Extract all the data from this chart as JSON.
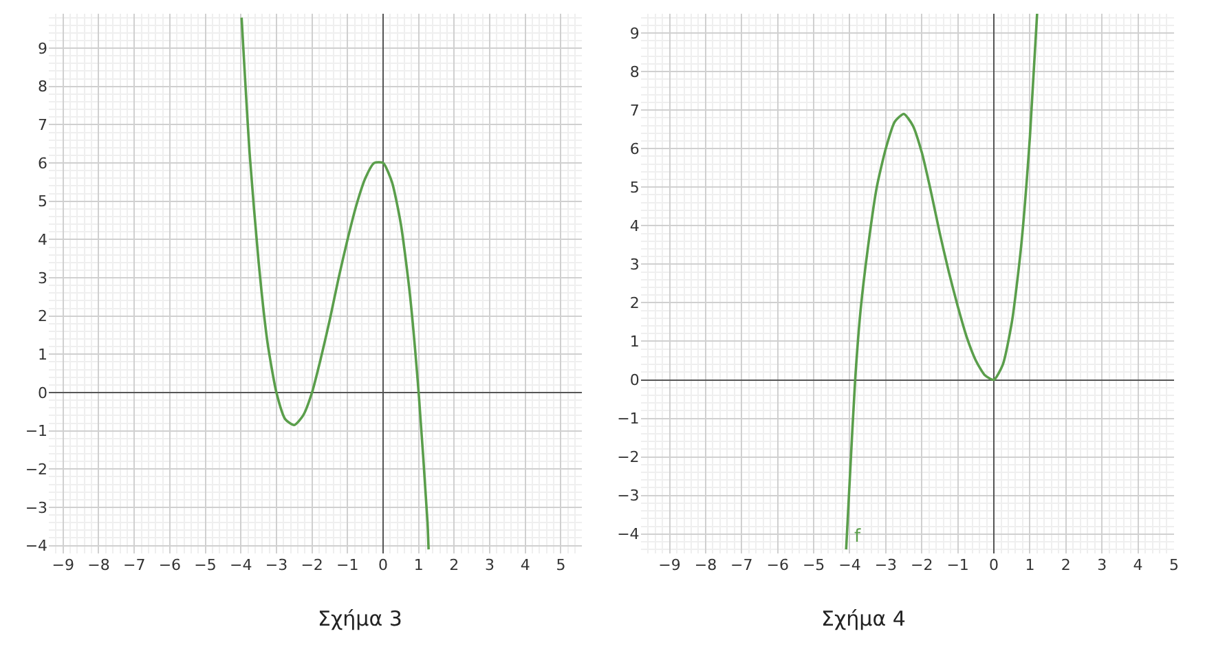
{
  "chart_data": [
    {
      "type": "line",
      "x": [
        -3.98,
        -3.75,
        -3.5,
        -3.25,
        -3,
        -2.75,
        -2.5,
        -2.25,
        -2,
        -1.75,
        -1.5,
        -1.25,
        -1,
        -0.75,
        -0.5,
        -0.25,
        0,
        0.25,
        0.5,
        0.75,
        1,
        1.25,
        1.28
      ],
      "series": [
        {
          "color": "#5a9e4b",
          "values": [
            9.8,
            6.2,
            3.4,
            1.3,
            0,
            -0.7,
            -0.85,
            -0.6,
            0,
            0.9,
            1.9,
            3,
            4,
            4.9,
            5.6,
            6,
            6,
            5.5,
            4.4,
            2.6,
            0,
            -3.4,
            -4.1
          ]
        }
      ],
      "xlim": [
        -9.4,
        5.6
      ],
      "ylim": [
        -4.2,
        9.9
      ],
      "xticks": [
        -9,
        -8,
        -7,
        -6,
        -5,
        -4,
        -3,
        -2,
        -1,
        0,
        1,
        2,
        3,
        4,
        5
      ],
      "yticks": [
        -4,
        -3,
        -2,
        -1,
        0,
        1,
        2,
        3,
        4,
        5,
        6,
        7,
        8,
        9
      ],
      "grid": true,
      "marker": "none",
      "line_style": "solid",
      "annotations": [
        "Σχήμα 3"
      ]
    },
    {
      "type": "line",
      "x": [
        -4.1,
        -4,
        -3.85,
        -3.7,
        -3.5,
        -3.25,
        -3,
        -2.75,
        -2.5,
        -2.25,
        -2,
        -1.75,
        -1.5,
        -1.25,
        -1,
        -0.75,
        -0.5,
        -0.25,
        0,
        0.25,
        0.5,
        0.75,
        1,
        1.2
      ],
      "series": [
        {
          "name": "f",
          "color": "#5a9e4b",
          "values": [
            -4.4,
            -2.6,
            0,
            1.8,
            3.4,
            5,
            6,
            6.7,
            6.9,
            6.6,
            5.9,
            4.9,
            3.8,
            2.8,
            1.9,
            1.1,
            0.5,
            0.12,
            0,
            0.4,
            1.5,
            3.4,
            6.3,
            9.5
          ]
        }
      ],
      "xlim": [
        -9.8,
        5
      ],
      "ylim": [
        -4.5,
        9.5
      ],
      "xticks": [
        -9,
        -8,
        -7,
        -6,
        -5,
        -4,
        -3,
        -2,
        -1,
        0,
        1,
        2,
        3,
        4,
        5
      ],
      "yticks": [
        -4,
        -3,
        -2,
        -1,
        0,
        1,
        2,
        3,
        4,
        5,
        6,
        7,
        8,
        9
      ],
      "grid": true,
      "marker": "none",
      "line_style": "solid",
      "annotations": [
        "Σχήμα 4"
      ]
    }
  ]
}
